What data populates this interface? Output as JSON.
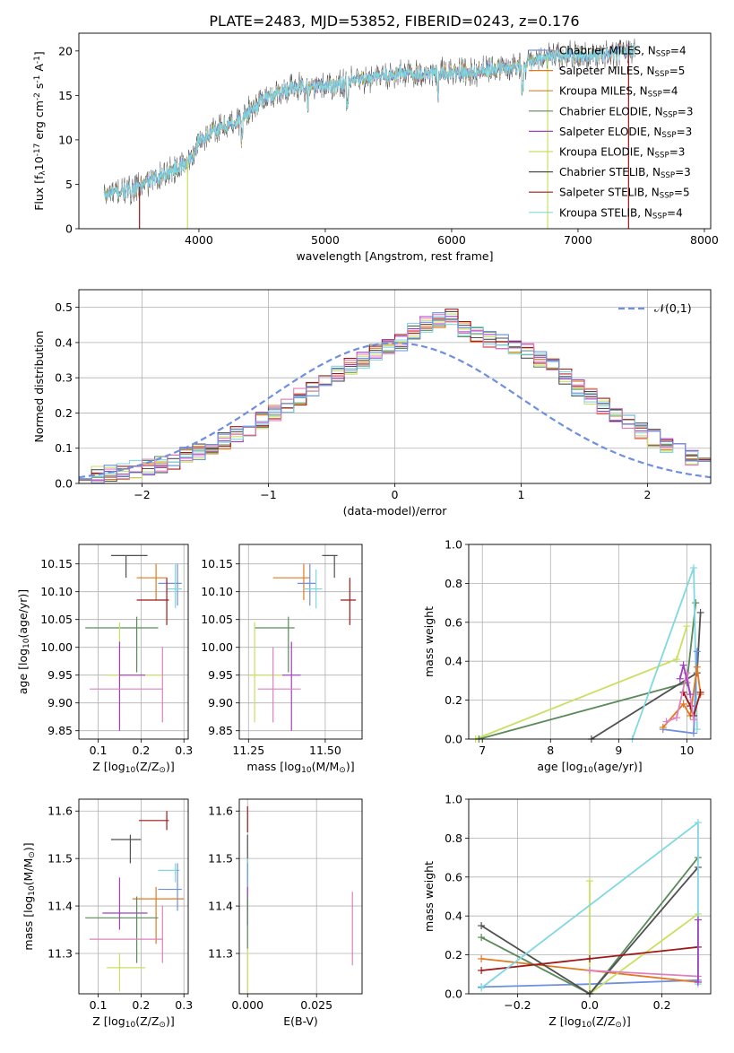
{
  "figure_title": "PLATE=2483, MJD=53852, FIBERID=0243, z=0.176",
  "colors": {
    "ChabrierMILES": "#6f8fe0",
    "SalpeterMILES": "#e07a20",
    "KroupaMILES": "#c08a30",
    "ChabrierELODIE": "#5a8a5a",
    "SalpeterELODIE": "#a040c0",
    "KroupaELODIE": "#c8e060",
    "ChabrierSTELIB": "#505050",
    "SalpeterSTELIB": "#a01818",
    "KroupaSTELIB": "#80d8e0",
    "pink": "#e080c0"
  },
  "chart_data": [
    {
      "id": "spectrum",
      "type": "line",
      "xlabel": "wavelength [Angstrom, rest frame]",
      "ylabel": "Flux [f$_\\lambda$10$^{-17}$ erg cm$^{-2}$ s$^{-1}$ A$^{-1}$]",
      "xlim": [
        3050,
        8050
      ],
      "ylim": [
        0,
        22
      ],
      "xticks": [
        4000,
        5000,
        6000,
        7000,
        8000
      ],
      "yticks": [
        0,
        5,
        10,
        15,
        20
      ],
      "grid": false,
      "legend_position": "upper right",
      "continuum_anchors": {
        "x": [
          3250,
          3500,
          3700,
          3850,
          3950,
          4000,
          4200,
          4300,
          4500,
          4700,
          5000,
          5300,
          5600,
          6000,
          6300,
          6600,
          6800,
          7000,
          7200,
          7450
        ],
        "y": [
          3.8,
          4.5,
          6.0,
          7.0,
          8.0,
          10.0,
          11.5,
          12.0,
          14.5,
          15.8,
          16.0,
          16.8,
          17.5,
          17.5,
          17.8,
          18.5,
          19.5,
          19.5,
          19.5,
          20.0
        ]
      },
      "series": [
        {
          "name": "Chabrier MILES, N$_{SSP}$=4",
          "color_key": "ChabrierMILES"
        },
        {
          "name": "Salpeter MILES, N$_{SSP}$=5",
          "color_key": "SalpeterMILES"
        },
        {
          "name": "Kroupa MILES, N$_{SSP}$=4",
          "color_key": "KroupaMILES"
        },
        {
          "name": "Chabrier ELODIE, N$_{SSP}$=3",
          "color_key": "ChabrierELODIE"
        },
        {
          "name": "Salpeter ELODIE, N$_{SSP}$=3",
          "color_key": "SalpeterELODIE"
        },
        {
          "name": "Kroupa ELODIE, N$_{SSP}$=3",
          "color_key": "KroupaELODIE"
        },
        {
          "name": "Chabrier STELIB, N$_{SSP}$=3",
          "color_key": "ChabrierSTELIB"
        },
        {
          "name": "Salpeter STELIB, N$_{SSP}$=5",
          "color_key": "SalpeterSTELIB"
        },
        {
          "name": "Kroupa STELIB, N$_{SSP}$=4",
          "color_key": "KroupaSTELIB"
        }
      ],
      "vertical_drops": [
        {
          "x": 3530,
          "color_key": "SalpeterSTELIB"
        },
        {
          "x": 3910,
          "color_key": "KroupaELODIE"
        },
        {
          "x": 6760,
          "color_key": "KroupaELODIE"
        },
        {
          "x": 7400,
          "color_key": "SalpeterSTELIB"
        }
      ]
    },
    {
      "id": "residuals",
      "type": "step",
      "xlabel": "(data-model)/error",
      "ylabel": "Normed distribution",
      "xlim": [
        -2.5,
        2.5
      ],
      "ylim": [
        0,
        0.55
      ],
      "xticks": [
        -2,
        -1,
        0,
        1,
        2
      ],
      "yticks": [
        0.0,
        0.1,
        0.2,
        0.3,
        0.4,
        0.5
      ],
      "grid": true,
      "legend_position": "upper right",
      "gauss_label": "$\\mathcal{N}(0,1)$",
      "gauss_color": "#6f8fe0",
      "bin_width": 0.1,
      "bin_start": -2.5,
      "base_heights": [
        0.02,
        0.025,
        0.03,
        0.035,
        0.04,
        0.048,
        0.055,
        0.065,
        0.08,
        0.09,
        0.105,
        0.12,
        0.14,
        0.16,
        0.18,
        0.2,
        0.22,
        0.245,
        0.27,
        0.29,
        0.31,
        0.33,
        0.35,
        0.37,
        0.385,
        0.4,
        0.43,
        0.45,
        0.46,
        0.47,
        0.44,
        0.42,
        0.41,
        0.4,
        0.39,
        0.38,
        0.35,
        0.33,
        0.3,
        0.27,
        0.25,
        0.22,
        0.19,
        0.17,
        0.15,
        0.13,
        0.11,
        0.09,
        0.075,
        0.06
      ],
      "series_color_keys": [
        "SalpeterMILES",
        "ChabrierELODIE",
        "SalpeterELODIE",
        "KroupaELODIE",
        "ChabrierSTELIB",
        "SalpeterSTELIB",
        "KroupaSTELIB",
        "pink",
        "ChabrierMILES"
      ]
    },
    {
      "id": "age-vs-Z",
      "type": "errorbar",
      "xlabel": "Z [log$_{10}$(Z/Z$_\\odot$)]",
      "ylabel": "age  [log$_{10}$(age/yr)]",
      "xlim": [
        0.055,
        0.31
      ],
      "ylim": [
        9.835,
        10.185
      ],
      "xticks": [
        0.1,
        0.2,
        0.3
      ],
      "xtick_labels": [
        "0.1",
        "0.2",
        "0.3"
      ],
      "yticks": [
        9.85,
        9.9,
        9.95,
        10.0,
        10.05,
        10.1,
        10.15
      ],
      "ytick_labels": [
        "9.85",
        "9.90",
        "9.95",
        "10.00",
        "10.05",
        "10.10",
        "10.15"
      ],
      "grid": true,
      "points": [
        {
          "x": 0.165,
          "y": 10.165,
          "xlo": 0.13,
          "xhi": 0.215,
          "ylo": 10.125,
          "yhi": 10.165,
          "color_key": "ChabrierSTELIB"
        },
        {
          "x": 0.235,
          "y": 10.125,
          "xlo": 0.19,
          "xhi": 0.26,
          "ylo": 10.085,
          "yhi": 10.15,
          "color_key": "SalpeterMILES"
        },
        {
          "x": 0.285,
          "y": 10.115,
          "xlo": 0.24,
          "xhi": 0.295,
          "ylo": 10.075,
          "yhi": 10.15,
          "color_key": "ChabrierMILES"
        },
        {
          "x": 0.28,
          "y": 10.105,
          "xlo": 0.26,
          "xhi": 0.295,
          "ylo": 10.07,
          "yhi": 10.15,
          "color_key": "KroupaSTELIB"
        },
        {
          "x": 0.26,
          "y": 10.085,
          "xlo": 0.19,
          "xhi": 0.265,
          "ylo": 10.04,
          "yhi": 10.125,
          "color_key": "SalpeterSTELIB"
        },
        {
          "x": 0.19,
          "y": 10.035,
          "xlo": 0.07,
          "xhi": 0.24,
          "ylo": 9.955,
          "yhi": 10.055,
          "color_key": "ChabrierELODIE"
        },
        {
          "x": 0.15,
          "y": 9.95,
          "xlo": 0.12,
          "xhi": 0.25,
          "ylo": 9.855,
          "yhi": 10.045,
          "color_key": "KroupaELODIE"
        },
        {
          "x": 0.15,
          "y": 9.95,
          "xlo": 0.15,
          "xhi": 0.21,
          "ylo": 9.85,
          "yhi": 10.01,
          "color_key": "SalpeterELODIE"
        },
        {
          "x": 0.25,
          "y": 9.925,
          "xlo": 0.08,
          "xhi": 0.25,
          "ylo": 9.865,
          "yhi": 10.0,
          "color_key": "pink"
        }
      ]
    },
    {
      "id": "age-vs-mass",
      "type": "errorbar",
      "xlabel": "mass [log$_{10}$(M/M$_\\odot$)]",
      "xlim": [
        11.22,
        11.62
      ],
      "ylim": [
        9.835,
        10.185
      ],
      "xticks": [
        11.25,
        11.5
      ],
      "xtick_labels": [
        "11.25",
        "11.50"
      ],
      "yticks": [
        9.85,
        9.9,
        9.95,
        10.0,
        10.05,
        10.1,
        10.15
      ],
      "ytick_labels": [
        "9.85",
        "9.90",
        "9.95",
        "10.00",
        "10.05",
        "10.10",
        "10.15"
      ],
      "grid": true,
      "points": [
        {
          "x": 11.53,
          "y": 10.165,
          "xlo": 11.49,
          "xhi": 11.54,
          "ylo": 10.125,
          "yhi": 10.165,
          "color_key": "ChabrierSTELIB"
        },
        {
          "x": 11.43,
          "y": 10.125,
          "xlo": 11.33,
          "xhi": 11.45,
          "ylo": 10.085,
          "yhi": 10.15,
          "color_key": "SalpeterMILES"
        },
        {
          "x": 11.45,
          "y": 10.115,
          "xlo": 11.41,
          "xhi": 11.47,
          "ylo": 10.075,
          "yhi": 10.15,
          "color_key": "ChabrierMILES"
        },
        {
          "x": 11.47,
          "y": 10.105,
          "xlo": 11.43,
          "xhi": 11.49,
          "ylo": 10.07,
          "yhi": 10.14,
          "color_key": "KroupaSTELIB"
        },
        {
          "x": 11.58,
          "y": 10.085,
          "xlo": 11.55,
          "xhi": 11.6,
          "ylo": 10.04,
          "yhi": 10.125,
          "color_key": "SalpeterSTELIB"
        },
        {
          "x": 11.38,
          "y": 10.035,
          "xlo": 11.27,
          "xhi": 11.4,
          "ylo": 9.955,
          "yhi": 10.055,
          "color_key": "ChabrierELODIE"
        },
        {
          "x": 11.27,
          "y": 9.95,
          "xlo": 11.25,
          "xhi": 11.37,
          "ylo": 9.865,
          "yhi": 10.045,
          "color_key": "KroupaELODIE"
        },
        {
          "x": 11.39,
          "y": 9.95,
          "xlo": 11.36,
          "xhi": 11.42,
          "ylo": 9.85,
          "yhi": 10.01,
          "color_key": "SalpeterELODIE"
        },
        {
          "x": 11.33,
          "y": 9.925,
          "xlo": 11.28,
          "xhi": 11.42,
          "ylo": 9.865,
          "yhi": 10.0,
          "color_key": "pink"
        }
      ]
    },
    {
      "id": "weight-vs-age",
      "type": "line",
      "xlabel": "age  [log$_{10}$(age/yr)]",
      "ylabel": "mass weight",
      "xlim": [
        6.8,
        10.35
      ],
      "ylim": [
        0.0,
        1.0
      ],
      "xticks": [
        7,
        8,
        9,
        10
      ],
      "yticks": [
        0.0,
        0.2,
        0.4,
        0.6,
        0.8,
        1.0
      ],
      "grid": true,
      "series": [
        {
          "color_key": "KroupaELODIE",
          "x": [
            6.9,
            9.85,
            10.0
          ],
          "y": [
            0.0,
            0.41,
            0.58
          ]
        },
        {
          "color_key": "ChabrierELODIE",
          "x": [
            6.95,
            10.0,
            10.13
          ],
          "y": [
            0.0,
            0.29,
            0.7
          ]
        },
        {
          "color_key": "ChabrierSTELIB",
          "x": [
            8.6,
            10.15,
            10.2
          ],
          "y": [
            0.0,
            0.34,
            0.65
          ]
        },
        {
          "color_key": "KroupaSTELIB",
          "x": [
            9.2,
            10.1,
            10.15
          ],
          "y": [
            0.0,
            0.88,
            0.05
          ]
        },
        {
          "color_key": "ChabrierMILES",
          "x": [
            9.65,
            10.1,
            10.15
          ],
          "y": [
            0.05,
            0.03,
            0.45
          ]
        },
        {
          "color_key": "SalpeterMILES",
          "x": [
            9.65,
            9.95,
            10.05,
            10.15,
            10.2
          ],
          "y": [
            0.06,
            0.18,
            0.12,
            0.37,
            0.23
          ]
        },
        {
          "color_key": "SalpeterSTELIB",
          "x": [
            9.95,
            10.05,
            10.1,
            10.2
          ],
          "y": [
            0.24,
            0.17,
            0.12,
            0.24
          ]
        },
        {
          "color_key": "pink",
          "x": [
            9.7,
            9.85,
            10.0,
            10.1
          ],
          "y": [
            0.09,
            0.11,
            0.34,
            0.1
          ]
        },
        {
          "color_key": "SalpeterELODIE",
          "x": [
            9.9,
            9.95,
            10.05
          ],
          "y": [
            0.31,
            0.38,
            0.23
          ]
        }
      ]
    },
    {
      "id": "mass-vs-Z",
      "type": "errorbar",
      "xlabel": "Z [log$_{10}$(Z/Z$_\\odot$)]",
      "ylabel": "mass [log$_{10}$(M/M$_\\odot$)]",
      "xlim": [
        0.055,
        0.31
      ],
      "ylim": [
        11.215,
        11.625
      ],
      "xticks": [
        0.1,
        0.2,
        0.3
      ],
      "xtick_labels": [
        "0.1",
        "0.2",
        "0.3"
      ],
      "yticks": [
        11.3,
        11.4,
        11.5,
        11.6
      ],
      "ytick_labels": [
        "11.3",
        "11.4",
        "11.5",
        "11.6"
      ],
      "grid": true,
      "points": [
        {
          "x": 0.26,
          "y": 11.58,
          "xlo": 0.195,
          "xhi": 0.265,
          "ylo": 11.56,
          "yhi": 11.6,
          "color_key": "SalpeterSTELIB"
        },
        {
          "x": 0.175,
          "y": 11.54,
          "xlo": 0.13,
          "xhi": 0.2,
          "ylo": 11.49,
          "yhi": 11.55,
          "color_key": "ChabrierSTELIB"
        },
        {
          "x": 0.28,
          "y": 11.475,
          "xlo": 0.24,
          "xhi": 0.29,
          "ylo": 11.45,
          "yhi": 11.49,
          "color_key": "KroupaSTELIB"
        },
        {
          "x": 0.285,
          "y": 11.435,
          "xlo": 0.24,
          "xhi": 0.295,
          "ylo": 11.39,
          "yhi": 11.49,
          "color_key": "ChabrierMILES"
        },
        {
          "x": 0.235,
          "y": 11.415,
          "xlo": 0.18,
          "xhi": 0.3,
          "ylo": 11.32,
          "yhi": 11.44,
          "color_key": "SalpeterMILES"
        },
        {
          "x": 0.15,
          "y": 11.385,
          "xlo": 0.11,
          "xhi": 0.215,
          "ylo": 11.35,
          "yhi": 11.46,
          "color_key": "SalpeterELODIE"
        },
        {
          "x": 0.19,
          "y": 11.375,
          "xlo": 0.07,
          "xhi": 0.24,
          "ylo": 11.28,
          "yhi": 11.42,
          "color_key": "ChabrierELODIE"
        },
        {
          "x": 0.25,
          "y": 11.33,
          "xlo": 0.08,
          "xhi": 0.25,
          "ylo": 11.28,
          "yhi": 11.4,
          "color_key": "pink"
        },
        {
          "x": 0.15,
          "y": 11.27,
          "xlo": 0.12,
          "xhi": 0.21,
          "ylo": 11.22,
          "yhi": 11.3,
          "color_key": "KroupaELODIE"
        }
      ]
    },
    {
      "id": "mass-vs-EBV",
      "type": "errorbar",
      "xlabel": "E(B-V)",
      "xlim": [
        -0.003,
        0.0415
      ],
      "ylim": [
        11.215,
        11.625
      ],
      "xticks": [
        0.0,
        0.025
      ],
      "xtick_labels": [
        "0.000",
        "0.025"
      ],
      "yticks": [
        11.3,
        11.4,
        11.5,
        11.6
      ],
      "ytick_labels": [
        "11.3",
        "11.4",
        "11.5",
        "11.6"
      ],
      "grid": true,
      "points": [
        {
          "x": 0.0,
          "y": 11.58,
          "xlo": 0.0,
          "xhi": 0.0,
          "ylo": 11.555,
          "yhi": 11.61,
          "color_key": "SalpeterSTELIB"
        },
        {
          "x": 0.0,
          "y": 11.54,
          "xlo": 0.0,
          "xhi": 0.0,
          "ylo": 11.49,
          "yhi": 11.55,
          "color_key": "ChabrierSTELIB"
        },
        {
          "x": 0.0,
          "y": 11.475,
          "xlo": 0.0,
          "xhi": 0.0,
          "ylo": 11.45,
          "yhi": 11.5,
          "color_key": "KroupaSTELIB"
        },
        {
          "x": 0.0,
          "y": 11.435,
          "xlo": 0.0,
          "xhi": 0.0,
          "ylo": 11.39,
          "yhi": 11.49,
          "color_key": "ChabrierMILES"
        },
        {
          "x": 0.0,
          "y": 11.4,
          "xlo": 0.0,
          "xhi": 0.0,
          "ylo": 11.36,
          "yhi": 11.44,
          "color_key": "SalpeterELODIE"
        },
        {
          "x": 0.0,
          "y": 11.375,
          "xlo": 0.0,
          "xhi": 0.0,
          "ylo": 11.31,
          "yhi": 11.42,
          "color_key": "ChabrierELODIE"
        },
        {
          "x": 0.0,
          "y": 11.27,
          "xlo": 0.0,
          "xhi": 0.0,
          "ylo": 11.22,
          "yhi": 11.31,
          "color_key": "KroupaELODIE"
        },
        {
          "x": 0.038,
          "y": 11.35,
          "xlo": 0.038,
          "xhi": 0.038,
          "ylo": 11.275,
          "yhi": 11.43,
          "color_key": "pink"
        }
      ]
    },
    {
      "id": "weight-vs-Z",
      "type": "line",
      "xlabel": "Z [log$_{10}$(Z/Z$_\\odot$)]",
      "ylabel": "mass weight",
      "xlim": [
        -0.335,
        0.335
      ],
      "ylim": [
        0.0,
        1.0
      ],
      "xticks": [
        -0.2,
        0.0,
        0.2
      ],
      "xtick_labels": [
        "−0.2",
        "0.0",
        "0.2"
      ],
      "yticks": [
        0.0,
        0.2,
        0.4,
        0.6,
        0.8,
        1.0
      ],
      "grid": true,
      "series": [
        {
          "color_key": "ChabrierMILES",
          "x": [
            -0.3,
            0.0,
            0.3
          ],
          "y": [
            0.035,
            0.05,
            0.07
          ]
        },
        {
          "color_key": "SalpeterMILES",
          "x": [
            -0.3,
            0.0,
            0.3
          ],
          "y": [
            0.18,
            0.12,
            0.06
          ]
        },
        {
          "color_key": "KroupaELODIE",
          "x": [
            0.0,
            0.0,
            0.3
          ],
          "y": [
            0.58,
            0.0,
            0.41
          ]
        },
        {
          "color_key": "ChabrierELODIE",
          "x": [
            -0.3,
            0.0,
            0.3
          ],
          "y": [
            0.29,
            0.0,
            0.7
          ]
        },
        {
          "color_key": "ChabrierSTELIB",
          "x": [
            -0.3,
            0.0,
            0.3
          ],
          "y": [
            0.35,
            0.0,
            0.65
          ]
        },
        {
          "color_key": "SalpeterSTELIB",
          "x": [
            -0.3,
            0.0,
            0.3
          ],
          "y": [
            0.12,
            0.18,
            0.24
          ]
        },
        {
          "color_key": "KroupaSTELIB",
          "x": [
            -0.3,
            0.3,
            0.3
          ],
          "y": [
            0.03,
            0.88,
            0.05
          ]
        },
        {
          "color_key": "pink",
          "x": [
            0.0,
            0.3
          ],
          "y": [
            0.12,
            0.09
          ]
        },
        {
          "color_key": "SalpeterELODIE",
          "x": [
            0.3,
            0.3
          ],
          "y": [
            0.06,
            0.38
          ]
        }
      ]
    }
  ]
}
